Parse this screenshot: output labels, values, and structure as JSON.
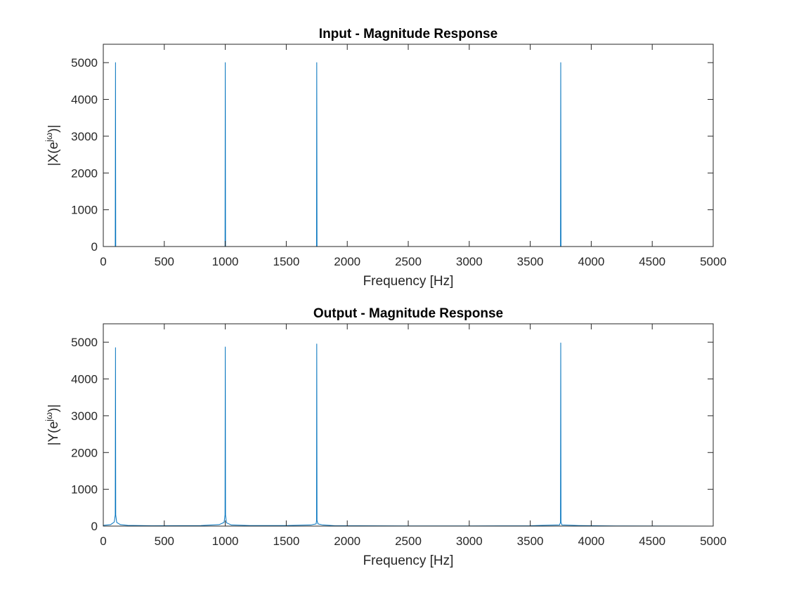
{
  "chart_data": [
    {
      "type": "line",
      "title": "Input - Magnitude Response",
      "xlabel": "Frequency [Hz]",
      "ylabel_base": "|X(e",
      "ylabel_sup": "jω",
      "ylabel_end": ")|",
      "xlim": [
        0,
        5000
      ],
      "ylim": [
        0,
        5500
      ],
      "xticks": [
        0,
        500,
        1000,
        1500,
        2000,
        2500,
        3000,
        3500,
        4000,
        4500,
        5000
      ],
      "yticks": [
        0,
        1000,
        2000,
        3000,
        4000,
        5000
      ],
      "grid": false,
      "series": [
        {
          "color": "#0072BD",
          "x": [
            0,
            98,
            100,
            102,
            998,
            1000,
            1002,
            1748,
            1750,
            1752,
            3748,
            3750,
            3752,
            5000
          ],
          "y": [
            0,
            0,
            5000,
            0,
            0,
            5000,
            0,
            0,
            5000,
            0,
            0,
            5000,
            0,
            0
          ]
        }
      ]
    },
    {
      "type": "line",
      "title": "Output - Magnitude Response",
      "xlabel": "Frequency [Hz]",
      "ylabel_base": "|Y(e",
      "ylabel_sup": "jω",
      "ylabel_end": ")|",
      "xlim": [
        0,
        5000
      ],
      "ylim": [
        0,
        5500
      ],
      "xticks": [
        0,
        500,
        1000,
        1500,
        2000,
        2500,
        3000,
        3500,
        4000,
        4500,
        5000
      ],
      "yticks": [
        0,
        1000,
        2000,
        3000,
        4000,
        5000
      ],
      "grid": false,
      "series": [
        {
          "color": "#0072BD",
          "x": [
            0,
            60,
            90,
            98,
            100,
            102,
            110,
            140,
            200,
            400,
            800,
            950,
            990,
            998,
            1000,
            1002,
            1010,
            1050,
            1200,
            1500,
            1700,
            1745,
            1748,
            1750,
            1752,
            1760,
            1800,
            1900,
            2500,
            3000,
            3500,
            3740,
            3748,
            3750,
            3752,
            3760,
            3900,
            4200,
            5000
          ],
          "y": [
            20,
            40,
            110,
            300,
            4850,
            300,
            100,
            40,
            20,
            10,
            15,
            40,
            100,
            300,
            4870,
            300,
            90,
            30,
            15,
            15,
            30,
            60,
            150,
            4950,
            150,
            60,
            30,
            10,
            5,
            5,
            10,
            30,
            100,
            4980,
            100,
            30,
            15,
            5,
            0
          ]
        }
      ]
    }
  ]
}
